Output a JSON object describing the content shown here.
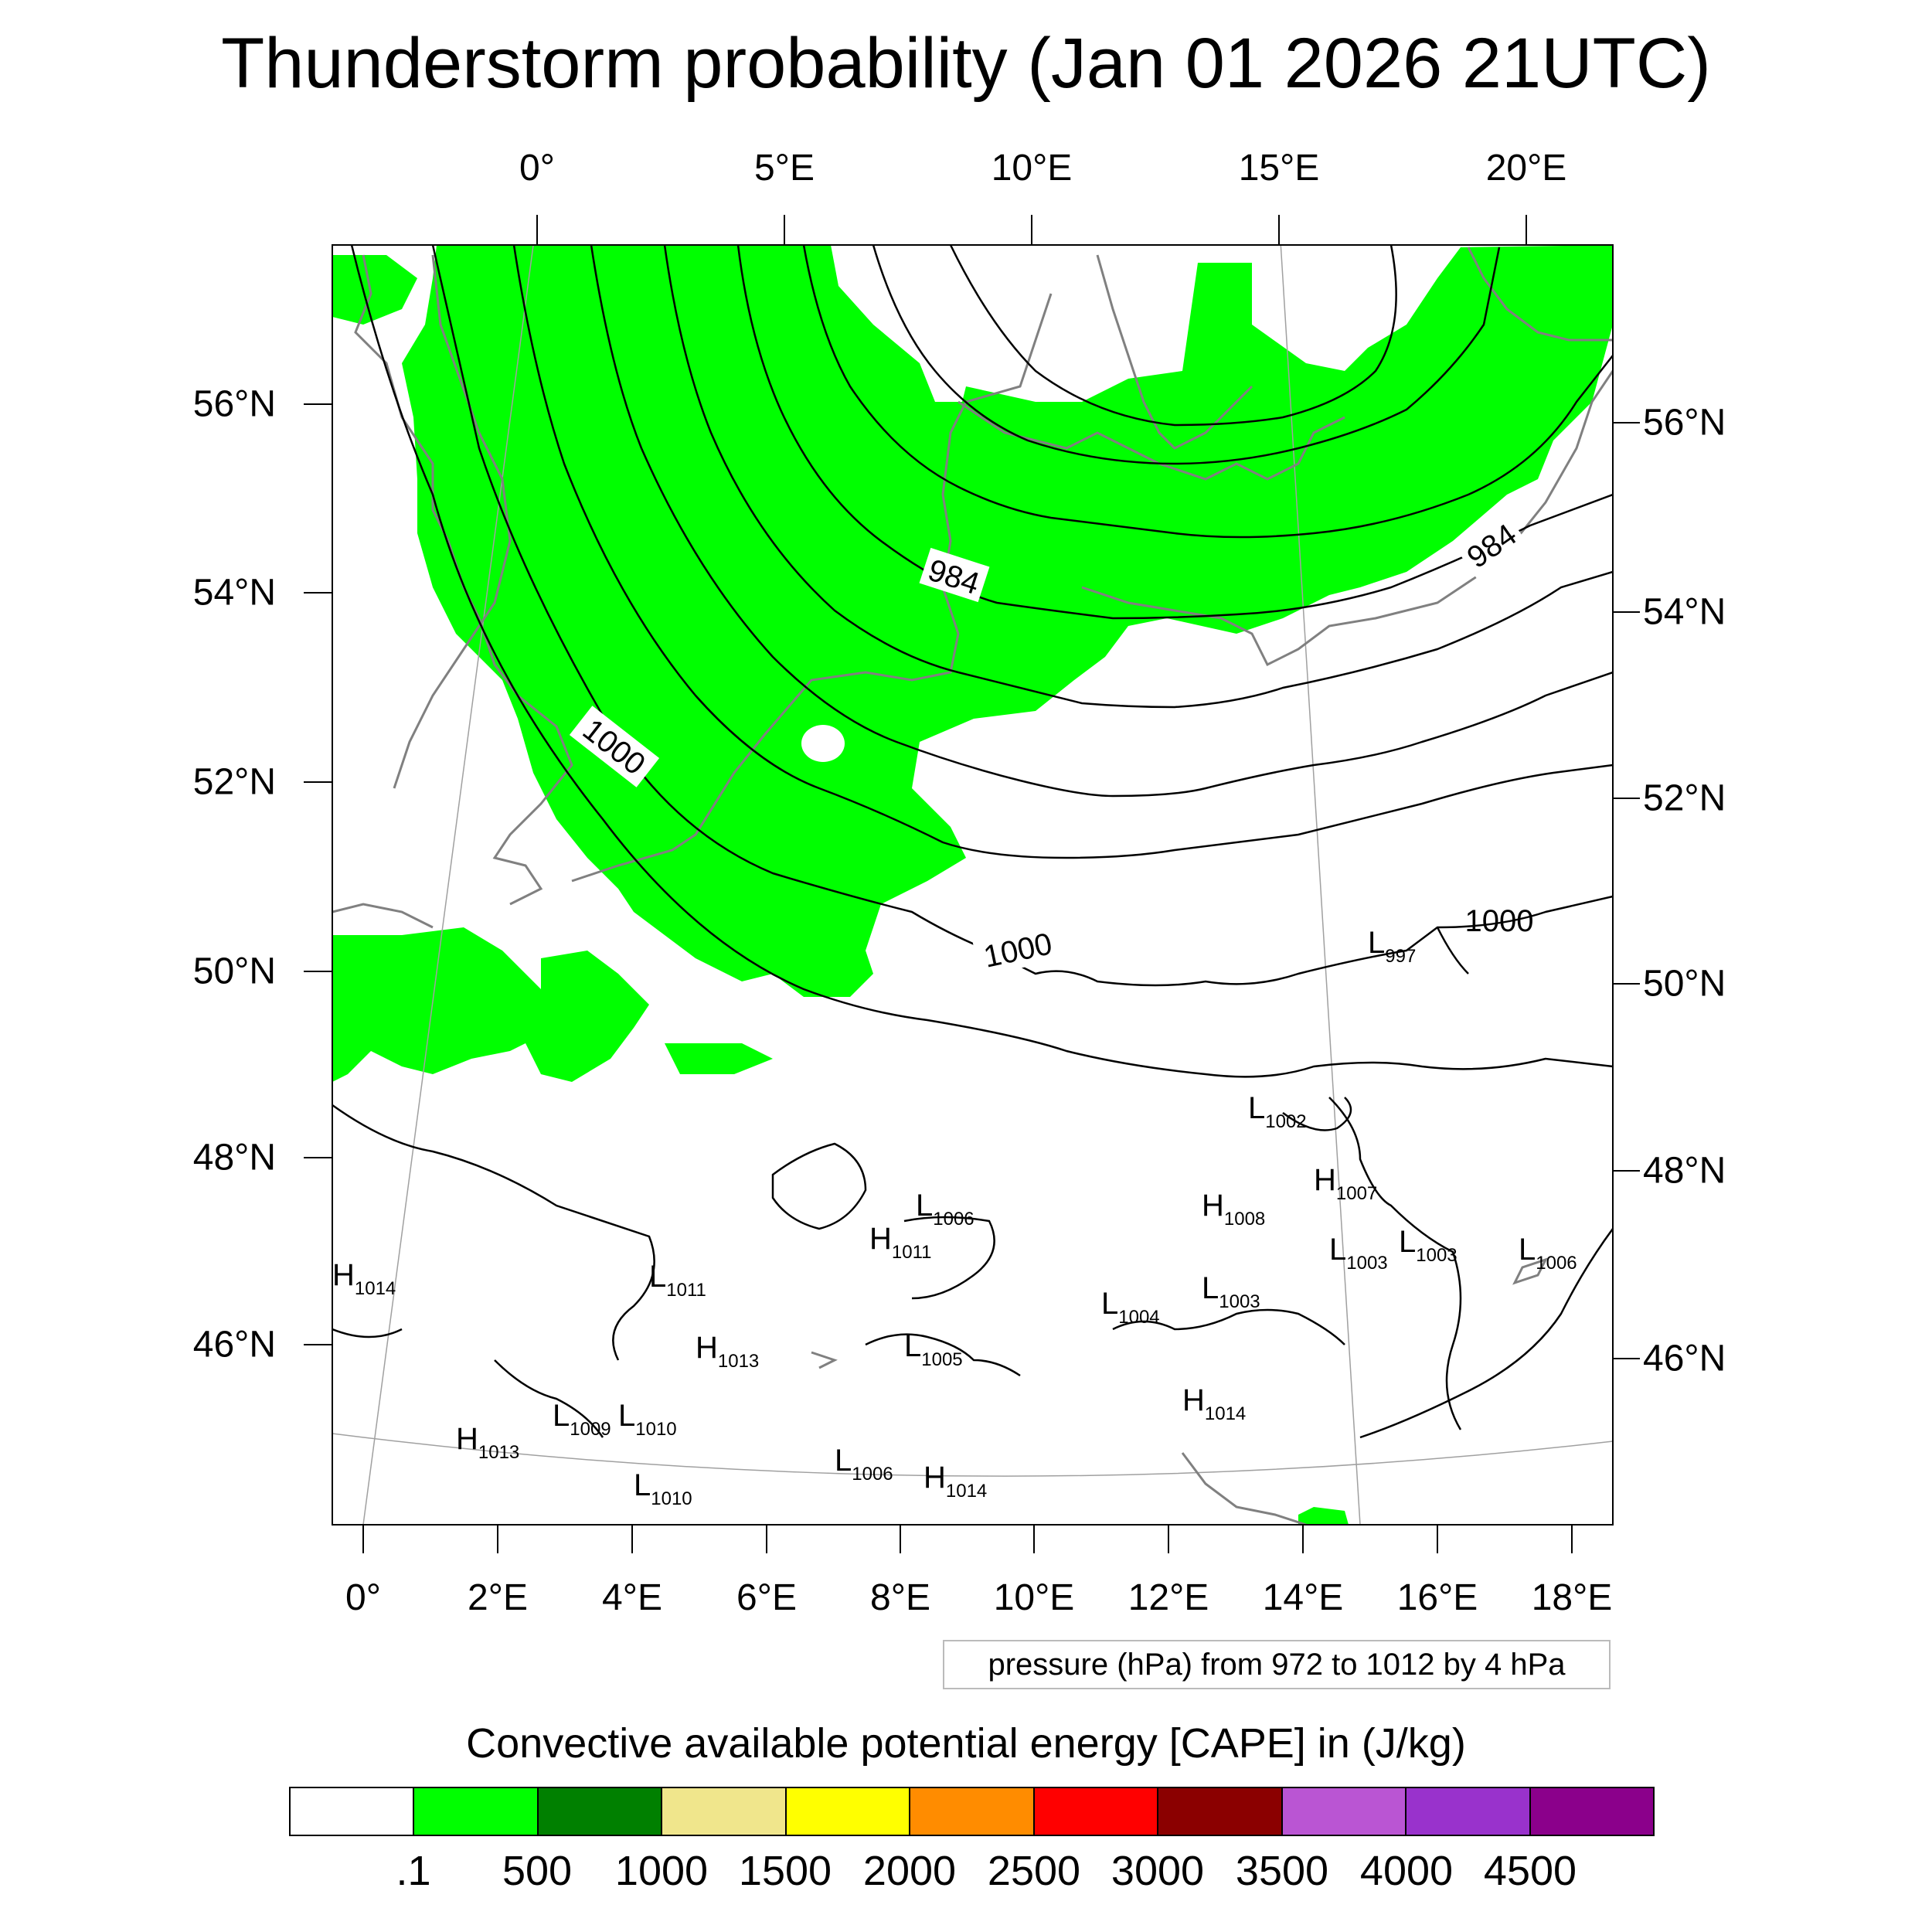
{
  "title": "Thunderstorm probability (Jan 01 2026 21UTC)",
  "top_axis": [
    "0°",
    "5°E",
    "10°E",
    "15°E",
    "20°E"
  ],
  "bottom_axis": [
    "0°",
    "2°E",
    "4°E",
    "6°E",
    "8°E",
    "10°E",
    "12°E",
    "14°E",
    "16°E",
    "18°E"
  ],
  "left_axis": [
    "56°N",
    "54°N",
    "52°N",
    "50°N",
    "48°N",
    "46°N"
  ],
  "right_axis": [
    "56°N",
    "54°N",
    "52°N",
    "50°N",
    "48°N",
    "46°N"
  ],
  "contour_labels": [
    "984",
    "984",
    "1000",
    "1000",
    "1000"
  ],
  "pressure_centers": [
    {
      "letter": "L",
      "value": "997"
    },
    {
      "letter": "L",
      "value": "1002"
    },
    {
      "letter": "H",
      "value": "1007"
    },
    {
      "letter": "H",
      "value": "1014"
    },
    {
      "letter": "L",
      "value": "1006"
    },
    {
      "letter": "H",
      "value": "1011"
    },
    {
      "letter": "H",
      "value": "1008"
    },
    {
      "letter": "L",
      "value": "1003"
    },
    {
      "letter": "L",
      "value": "1003"
    },
    {
      "letter": "L",
      "value": "1006"
    },
    {
      "letter": "L",
      "value": "1011"
    },
    {
      "letter": "L",
      "value": "1004"
    },
    {
      "letter": "L",
      "value": "1003"
    },
    {
      "letter": "H",
      "value": "1013"
    },
    {
      "letter": "L",
      "value": "1005"
    },
    {
      "letter": "L",
      "value": "1009"
    },
    {
      "letter": "L",
      "value": "1010"
    },
    {
      "letter": "H",
      "value": "1014"
    },
    {
      "letter": "H",
      "value": "1013"
    },
    {
      "letter": "L",
      "value": "1006"
    },
    {
      "letter": "H",
      "value": "1014"
    },
    {
      "letter": "L",
      "value": "1010"
    }
  ],
  "legend_note": "pressure (hPa) from 972 to 1012 by 4 hPa",
  "colorbar": {
    "title": "Convective available potential energy [CAPE] in (J/kg)",
    "colors": [
      "#ffffff",
      "#00ff00",
      "#008000",
      "#f0e68c",
      "#ffff00",
      "#ff8c00",
      "#ff0000",
      "#8b0000",
      "#ba55d3",
      "#9932cc",
      "#8b008b"
    ],
    "ticks": [
      ".1",
      "500",
      "1000",
      "1500",
      "2000",
      "2500",
      "3000",
      "3500",
      "4000",
      "4500"
    ]
  },
  "colors": {
    "cape_fill": "#00ff00",
    "coastline": "#808080",
    "isobar": "#000000",
    "grid": "#a0a0a0"
  }
}
